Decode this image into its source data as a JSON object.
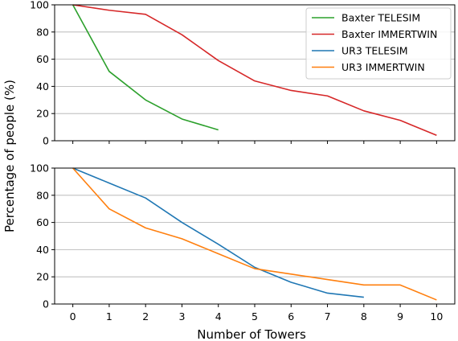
{
  "chart_data": {
    "type": "line",
    "xlabel": "Number of Towers",
    "ylabel": "Percentage of people (%)",
    "x_ticks": [
      0,
      1,
      2,
      3,
      4,
      5,
      6,
      7,
      8,
      9,
      10
    ],
    "y_ticks": [
      0,
      20,
      40,
      60,
      80,
      100
    ],
    "xlim": [
      -0.5,
      10.5
    ],
    "ylim": [
      0,
      100
    ],
    "grid": "horizontal",
    "legend_position": "top-right",
    "subplots": [
      {
        "series": [
          {
            "name": "Baxter TELESIM",
            "color": "#2ca02c",
            "x": [
              0,
              1,
              2,
              3,
              4
            ],
            "values": [
              100,
              51,
              30,
              16,
              8
            ]
          },
          {
            "name": "Baxter IMMERTWIN",
            "color": "#d62728",
            "x": [
              0,
              1,
              2,
              3,
              4,
              5,
              6,
              7,
              8,
              9,
              10
            ],
            "values": [
              100,
              96,
              93,
              78,
              59,
              44,
              37,
              33,
              22,
              15,
              4
            ]
          }
        ]
      },
      {
        "series": [
          {
            "name": "UR3 TELESIM",
            "color": "#1f77b4",
            "x": [
              0,
              1,
              2,
              3,
              4,
              5,
              6,
              7,
              8
            ],
            "values": [
              100,
              89,
              78,
              60,
              44,
              27,
              16,
              8,
              5
            ]
          },
          {
            "name": "UR3 IMMERTWIN",
            "color": "#ff7f0e",
            "x": [
              0,
              1,
              2,
              3,
              4,
              5,
              6,
              7,
              8,
              9,
              10
            ],
            "values": [
              100,
              70,
              56,
              48,
              37,
              26,
              22,
              18,
              14,
              14,
              3
            ]
          }
        ]
      }
    ]
  }
}
